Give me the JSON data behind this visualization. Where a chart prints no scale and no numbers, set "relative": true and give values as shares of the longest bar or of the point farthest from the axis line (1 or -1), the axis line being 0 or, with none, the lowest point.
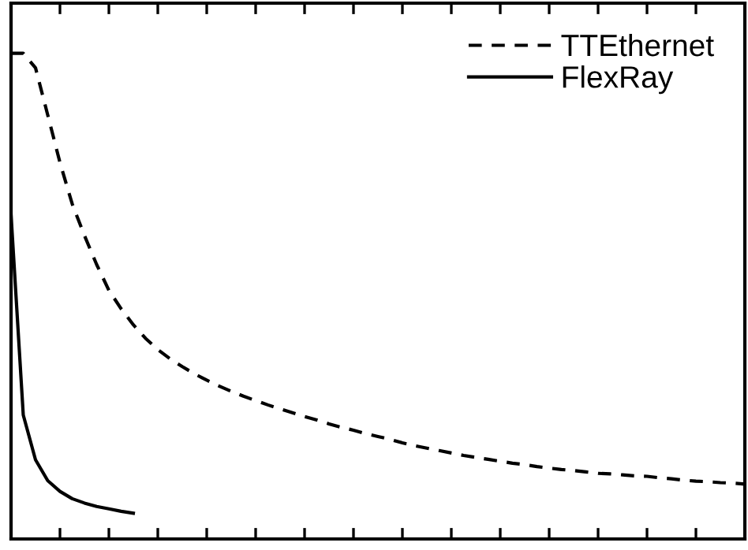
{
  "chart_data": {
    "type": "line",
    "relative": true,
    "legend": "top right",
    "marker": "none",
    "categories": [
      null,
      null,
      null,
      null,
      null,
      null,
      null,
      null,
      null,
      null,
      null,
      null,
      null,
      null,
      null,
      null,
      null,
      null,
      null,
      null,
      null,
      null,
      null,
      null,
      null,
      null,
      null,
      null,
      null,
      null,
      null,
      null,
      null,
      null,
      null,
      null,
      null,
      null,
      null,
      null,
      null,
      null,
      null,
      null,
      null,
      null,
      null,
      null,
      null,
      null,
      null,
      null,
      null,
      null,
      null,
      null,
      null,
      null,
      null,
      null,
      null
    ],
    "series": [
      {
        "name": "TTEthernet",
        "color": "#000000",
        "line_style": "dashed",
        "values": [
          1,
          1,
          0.97,
          0.873,
          0.775,
          0.69,
          0.625,
          0.565,
          0.512,
          0.474,
          0.441,
          0.413,
          0.39,
          0.371,
          0.355,
          0.34,
          0.327,
          0.315,
          0.304,
          0.294,
          0.285,
          0.276,
          0.268,
          0.26,
          0.252,
          0.245,
          0.237,
          0.23,
          0.224,
          0.217,
          0.211,
          0.205,
          0.198,
          0.192,
          0.187,
          0.182,
          0.177,
          0.172,
          0.168,
          0.164,
          0.16,
          0.156,
          0.153,
          0.149,
          0.146,
          0.143,
          0.141,
          0.138,
          0.135,
          0.134,
          0.132,
          0.13,
          0.129,
          0.126,
          0.124,
          0.121,
          0.119,
          0.118,
          0.116,
          0.115,
          0.113
        ]
      },
      {
        "name": "FlexRay",
        "color": "#000000",
        "line_style": "solid",
        "values": [
          0.668,
          0.255,
          0.163,
          0.12,
          0.098,
          0.083,
          0.074,
          0.067,
          0.062,
          0.057,
          0.053,
          null,
          null,
          null,
          null,
          null,
          null,
          null,
          null,
          null,
          null,
          null,
          null,
          null,
          null,
          null,
          null,
          null,
          null,
          null,
          null,
          null,
          null,
          null,
          null,
          null,
          null,
          null,
          null,
          null,
          null,
          null,
          null,
          null,
          null,
          null,
          null,
          null,
          null,
          null,
          null,
          null,
          null,
          null,
          null,
          null,
          null,
          null,
          null,
          null,
          null
        ]
      }
    ]
  }
}
